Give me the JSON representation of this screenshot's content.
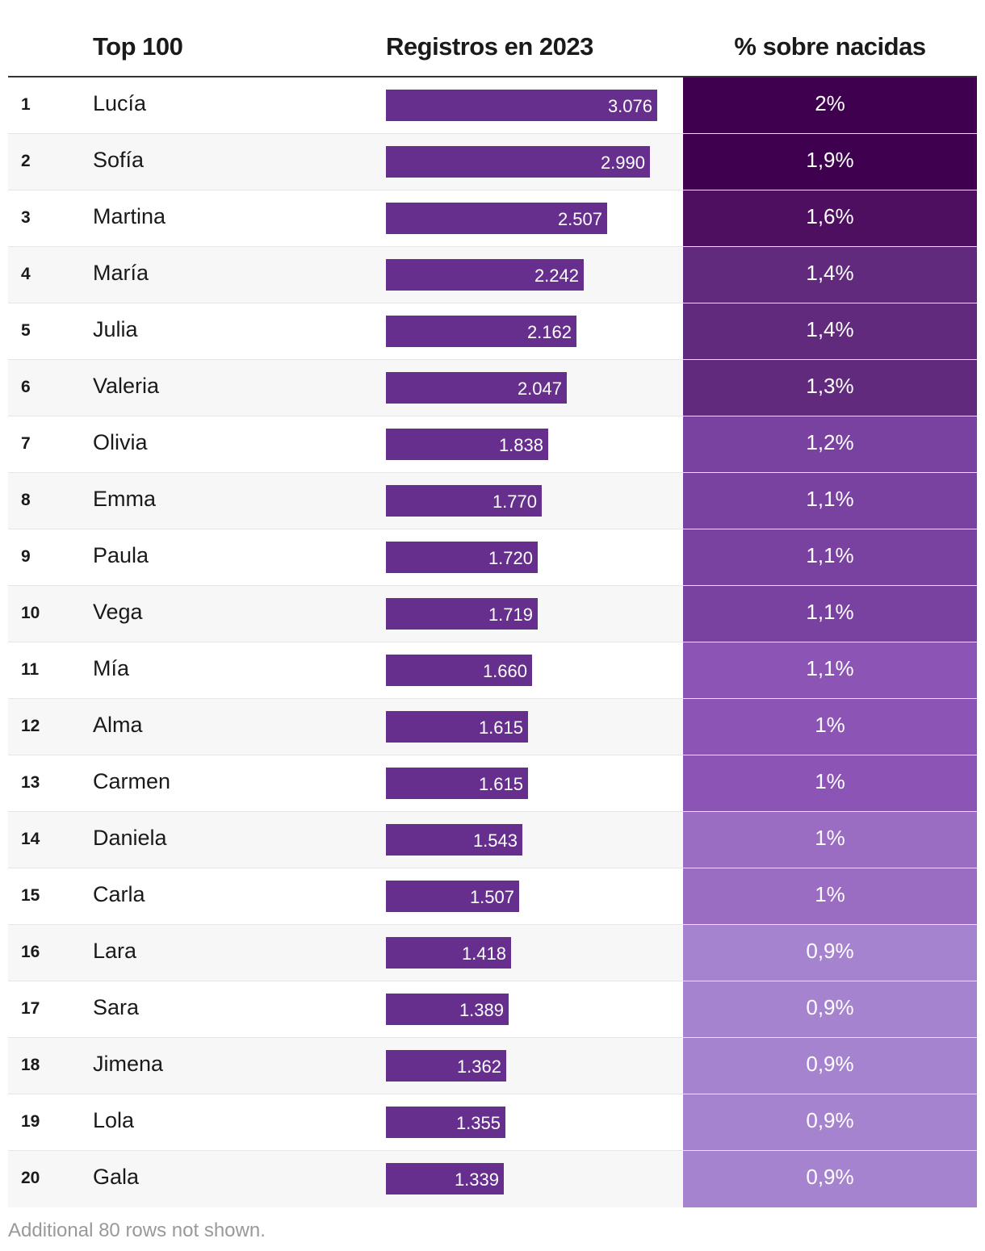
{
  "chart_data": {
    "type": "table",
    "columns": {
      "rank": "",
      "name": "Top 100",
      "registros": "Registros en 2023",
      "pct": "% sobre nacidas"
    },
    "bar_max": 3076,
    "rows": [
      {
        "rank": "1",
        "name": "Lucía",
        "value": 3076,
        "value_label": "3.076",
        "pct": 2.0,
        "pct_label": "2%",
        "color": "#3f004f"
      },
      {
        "rank": "2",
        "name": "Sofía",
        "value": 2990,
        "value_label": "2.990",
        "pct": 1.9,
        "pct_label": "1,9%",
        "color": "#3f004f"
      },
      {
        "rank": "3",
        "name": "Martina",
        "value": 2507,
        "value_label": "2.507",
        "pct": 1.6,
        "pct_label": "1,6%",
        "color": "#4f0f61"
      },
      {
        "rank": "4",
        "name": "María",
        "value": 2242,
        "value_label": "2.242",
        "pct": 1.4,
        "pct_label": "1,4%",
        "color": "#612a7d"
      },
      {
        "rank": "5",
        "name": "Julia",
        "value": 2162,
        "value_label": "2.162",
        "pct": 1.4,
        "pct_label": "1,4%",
        "color": "#612a7d"
      },
      {
        "rank": "6",
        "name": "Valeria",
        "value": 2047,
        "value_label": "2.047",
        "pct": 1.3,
        "pct_label": "1,3%",
        "color": "#612a7d"
      },
      {
        "rank": "7",
        "name": "Olivia",
        "value": 1838,
        "value_label": "1.838",
        "pct": 1.2,
        "pct_label": "1,2%",
        "color": "#7a42a0"
      },
      {
        "rank": "8",
        "name": "Emma",
        "value": 1770,
        "value_label": "1.770",
        "pct": 1.1,
        "pct_label": "1,1%",
        "color": "#7a42a0"
      },
      {
        "rank": "9",
        "name": "Paula",
        "value": 1720,
        "value_label": "1.720",
        "pct": 1.1,
        "pct_label": "1,1%",
        "color": "#7a42a0"
      },
      {
        "rank": "10",
        "name": "Vega",
        "value": 1719,
        "value_label": "1.719",
        "pct": 1.1,
        "pct_label": "1,1%",
        "color": "#7a42a0"
      },
      {
        "rank": "11",
        "name": "Mía",
        "value": 1660,
        "value_label": "1.660",
        "pct": 1.1,
        "pct_label": "1,1%",
        "color": "#8c55b5"
      },
      {
        "rank": "12",
        "name": "Alma",
        "value": 1615,
        "value_label": "1.615",
        "pct": 1.0,
        "pct_label": "1%",
        "color": "#8c55b5"
      },
      {
        "rank": "13",
        "name": "Carmen",
        "value": 1615,
        "value_label": "1.615",
        "pct": 1.0,
        "pct_label": "1%",
        "color": "#8c55b5"
      },
      {
        "rank": "14",
        "name": "Daniela",
        "value": 1543,
        "value_label": "1.543",
        "pct": 1.0,
        "pct_label": "1%",
        "color": "#9a6cc2"
      },
      {
        "rank": "15",
        "name": "Carla",
        "value": 1507,
        "value_label": "1.507",
        "pct": 1.0,
        "pct_label": "1%",
        "color": "#9a6cc2"
      },
      {
        "rank": "16",
        "name": "Lara",
        "value": 1418,
        "value_label": "1.418",
        "pct": 0.9,
        "pct_label": "0,9%",
        "color": "#a683cf"
      },
      {
        "rank": "17",
        "name": "Sara",
        "value": 1389,
        "value_label": "1.389",
        "pct": 0.9,
        "pct_label": "0,9%",
        "color": "#a683cf"
      },
      {
        "rank": "18",
        "name": "Jimena",
        "value": 1362,
        "value_label": "1.362",
        "pct": 0.9,
        "pct_label": "0,9%",
        "color": "#a683cf"
      },
      {
        "rank": "19",
        "name": "Lola",
        "value": 1355,
        "value_label": "1.355",
        "pct": 0.9,
        "pct_label": "0,9%",
        "color": "#a683cf"
      },
      {
        "rank": "20",
        "name": "Gala",
        "value": 1339,
        "value_label": "1.339",
        "pct": 0.9,
        "pct_label": "0,9%",
        "color": "#a683cf"
      }
    ],
    "footer": "Additional 80 rows not shown."
  }
}
